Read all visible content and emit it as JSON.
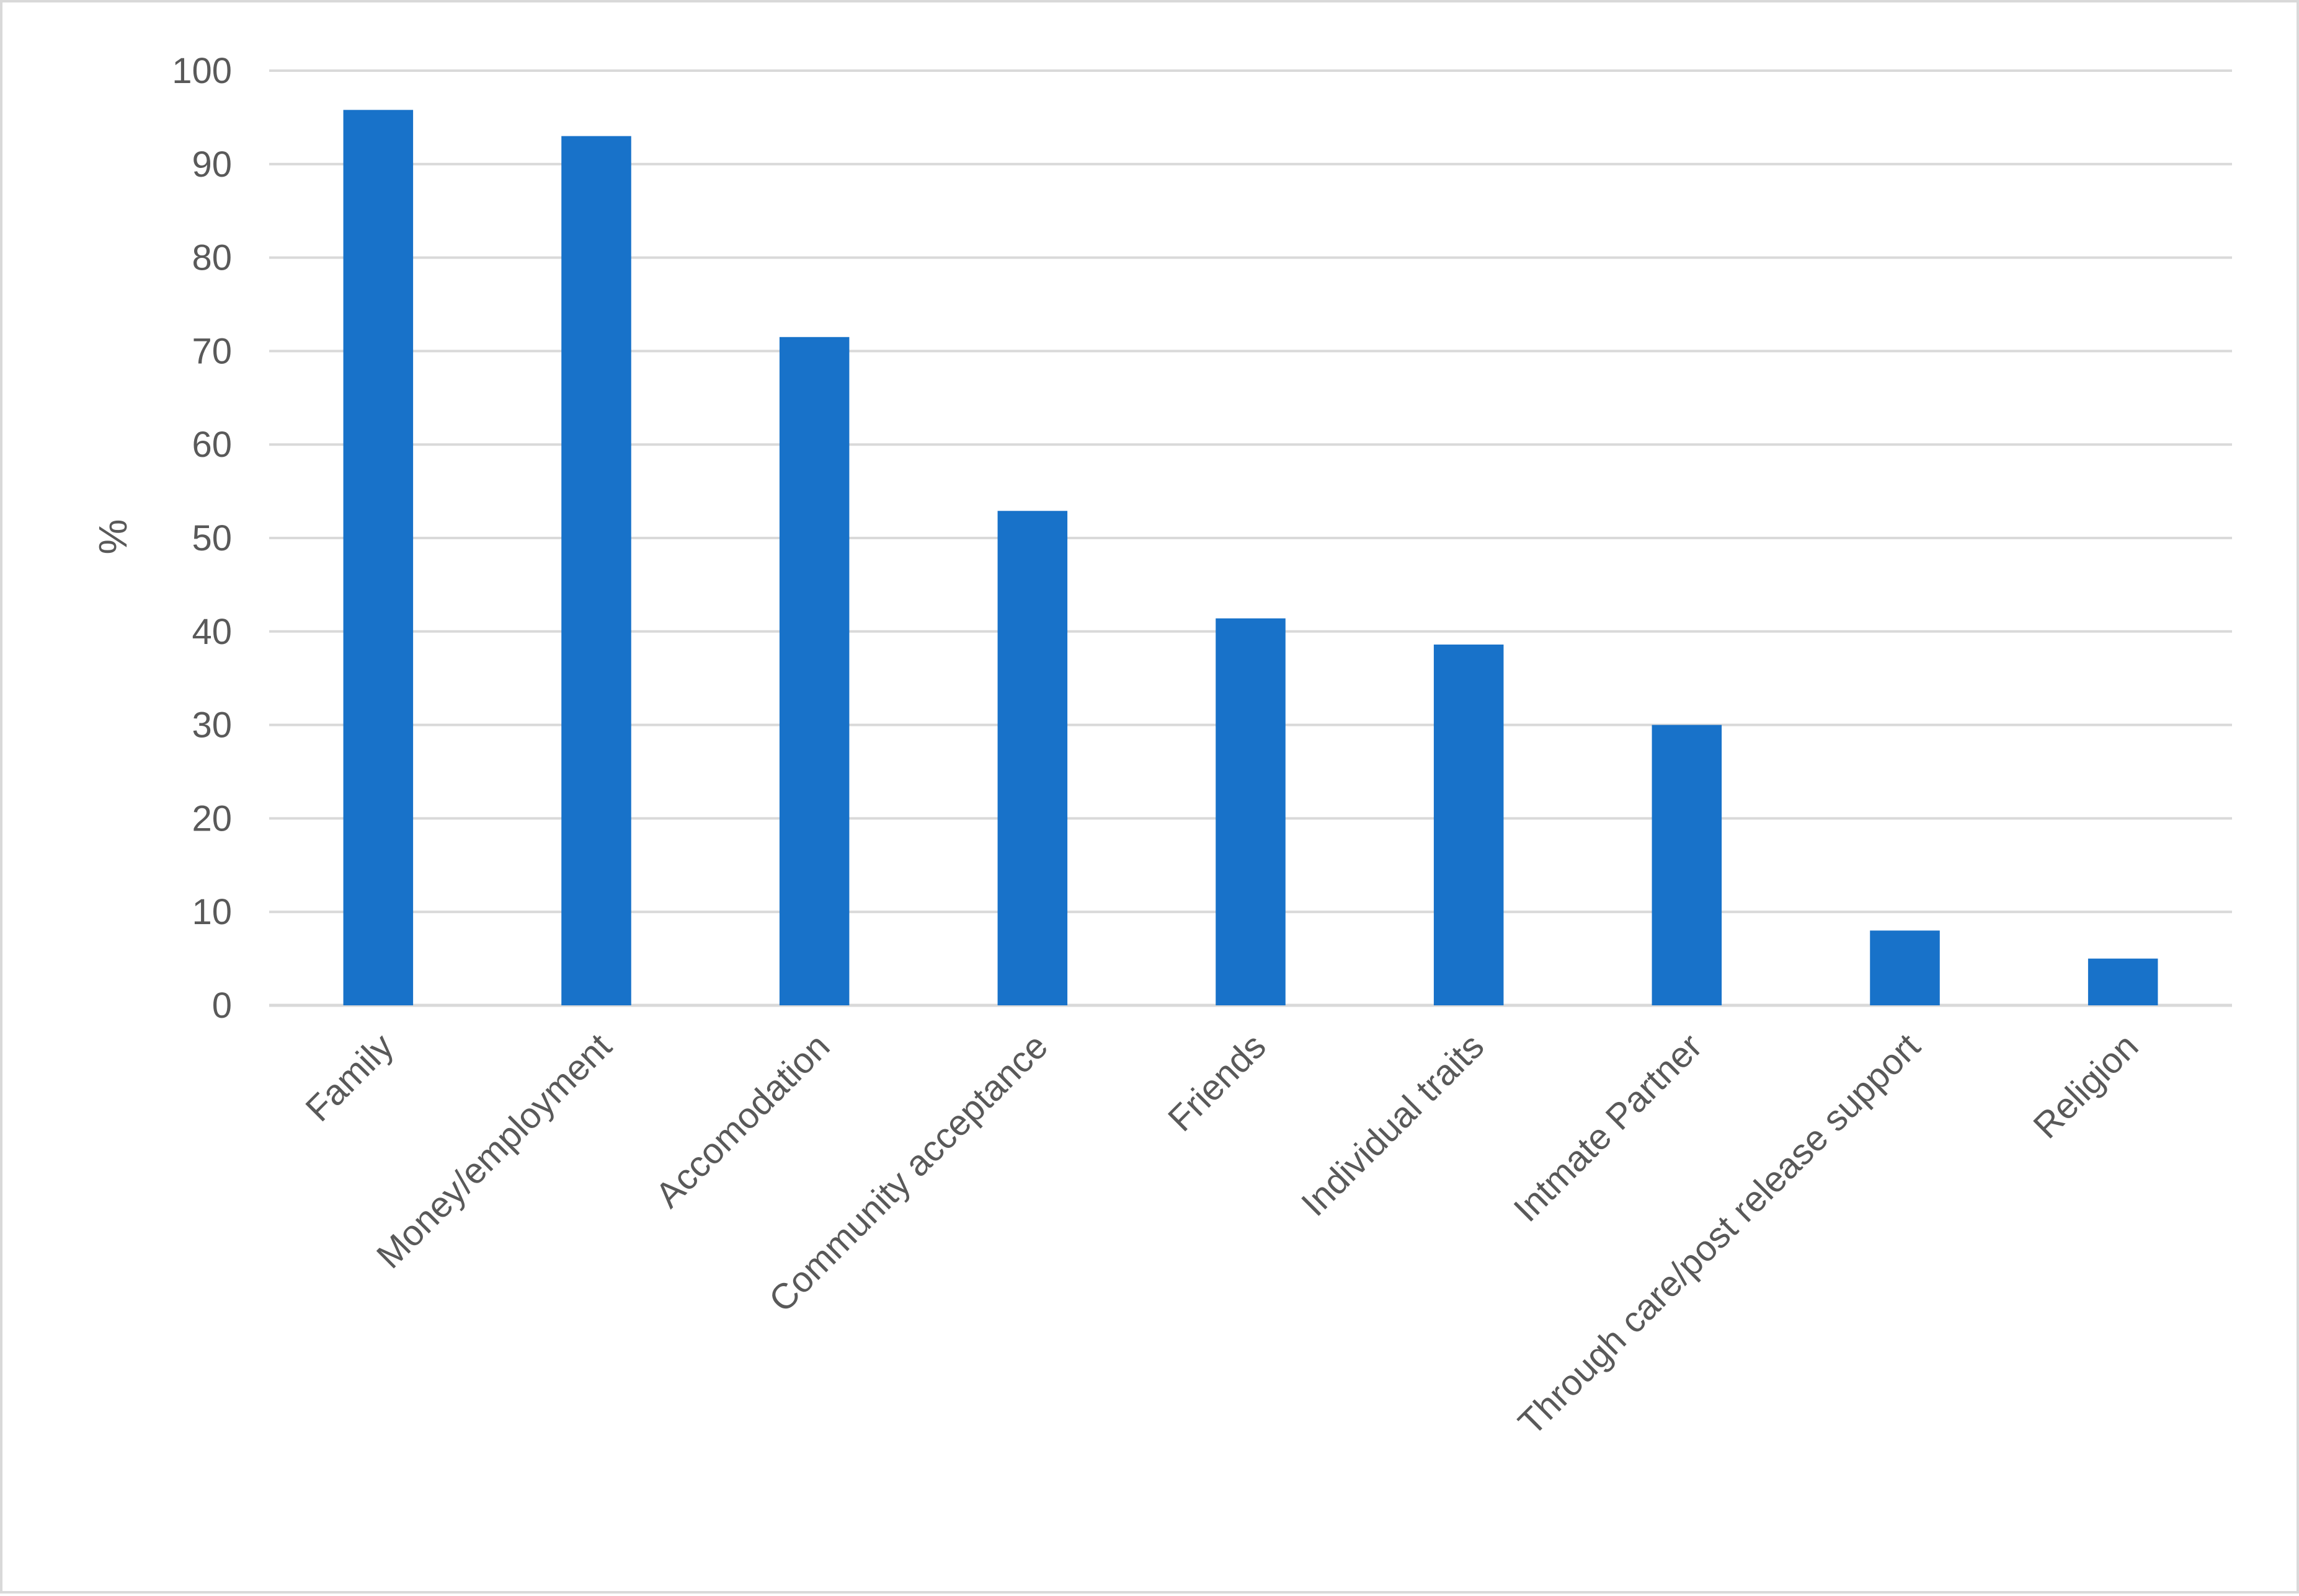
{
  "chart_data": {
    "type": "bar",
    "title": "",
    "xlabel": "",
    "ylabel": "%",
    "ylim": [
      0,
      100
    ],
    "yticks": [
      0,
      10,
      20,
      30,
      40,
      50,
      60,
      70,
      80,
      90,
      100
    ],
    "grid": true,
    "legend": "none",
    "bar_color": "#1872c9",
    "categories": [
      "Family",
      "Money/employment",
      "Accomodation",
      "Community acceptance",
      "Friends",
      "Individual traits",
      "Intmate Partner",
      "Through care/post release support",
      "Religion"
    ],
    "values": [
      95.8,
      93.0,
      71.5,
      52.9,
      41.4,
      38.6,
      30.0,
      8.0,
      5.0
    ]
  }
}
